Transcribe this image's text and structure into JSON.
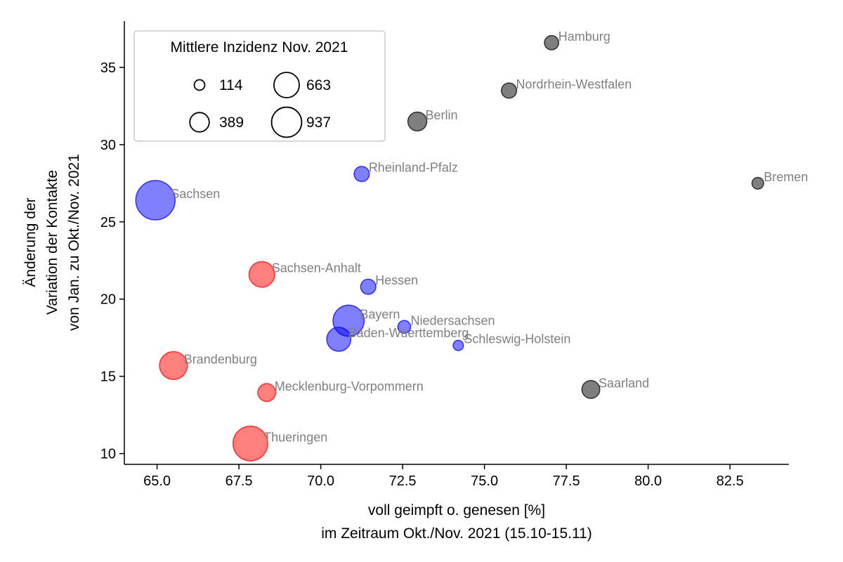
{
  "chart_data": {
    "type": "scatter",
    "title": "",
    "xlabel": [
      "voll geimpft o. genesen [%]",
      "im Zeitraum Okt./Nov. 2021 (15.10-15.11)"
    ],
    "ylabel": [
      "Änderung der",
      "Variation der Kontakte",
      "von Jan. zu Okt./Nov. 2021"
    ],
    "xlim": [
      64.0,
      84.3
    ],
    "ylim": [
      9.3,
      38.0
    ],
    "xticks": [
      65.0,
      67.5,
      70.0,
      72.5,
      75.0,
      77.5,
      80.0,
      82.5
    ],
    "xtick_labels": [
      "65.0",
      "67.5",
      "70.0",
      "72.5",
      "75.0",
      "77.5",
      "80.0",
      "82.5"
    ],
    "yticks": [
      10,
      15,
      20,
      25,
      30,
      35
    ],
    "ytick_labels": [
      "10",
      "15",
      "20",
      "25",
      "30",
      "35"
    ],
    "grid": false,
    "colors": {
      "red": "#ff0000",
      "blue": "#0000ff",
      "gray": "#000000"
    },
    "points": [
      {
        "name": "Hamburg",
        "x": 77.05,
        "y": 36.6,
        "incidence": 210,
        "group": "gray"
      },
      {
        "name": "Nordrhein-Westfalen",
        "x": 75.75,
        "y": 33.5,
        "incidence": 240,
        "group": "gray"
      },
      {
        "name": "Berlin",
        "x": 72.95,
        "y": 31.5,
        "incidence": 370,
        "group": "gray"
      },
      {
        "name": "Bremen",
        "x": 83.35,
        "y": 27.5,
        "incidence": 140,
        "group": "gray"
      },
      {
        "name": "Rheinland-Pfalz",
        "x": 71.25,
        "y": 28.1,
        "incidence": 240,
        "group": "blue"
      },
      {
        "name": "Sachsen",
        "x": 64.95,
        "y": 26.4,
        "incidence": 1600,
        "group": "blue"
      },
      {
        "name": "Sachsen-Anhalt",
        "x": 68.2,
        "y": 21.6,
        "incidence": 680,
        "group": "red"
      },
      {
        "name": "Hessen",
        "x": 71.45,
        "y": 20.8,
        "incidence": 240,
        "group": "blue"
      },
      {
        "name": "Bayern",
        "x": 70.85,
        "y": 18.6,
        "incidence": 1000,
        "group": "blue"
      },
      {
        "name": "Niedersachsen",
        "x": 72.55,
        "y": 18.2,
        "incidence": 170,
        "group": "blue"
      },
      {
        "name": "Baden-Wuerttemberg",
        "x": 70.55,
        "y": 17.4,
        "incidence": 600,
        "group": "blue"
      },
      {
        "name": "Schleswig-Holstein",
        "x": 74.2,
        "y": 17.0,
        "incidence": 110,
        "group": "blue"
      },
      {
        "name": "Brandenburg",
        "x": 65.5,
        "y": 15.7,
        "incidence": 800,
        "group": "red"
      },
      {
        "name": "Mecklenburg-Vorpommern",
        "x": 68.35,
        "y": 13.95,
        "incidence": 330,
        "group": "red"
      },
      {
        "name": "Saarland",
        "x": 78.25,
        "y": 14.15,
        "incidence": 330,
        "group": "gray"
      },
      {
        "name": "Thueringen",
        "x": 67.85,
        "y": 10.65,
        "incidence": 1250,
        "group": "red"
      }
    ],
    "legend": {
      "title": "Mittlere Inzidenz Nov. 2021",
      "placement": "top-left",
      "entries": [
        {
          "label": "114",
          "incidence": 114
        },
        {
          "label": "389",
          "incidence": 389
        },
        {
          "label": "663",
          "incidence": 663
        },
        {
          "label": "937",
          "incidence": 937
        }
      ]
    }
  }
}
